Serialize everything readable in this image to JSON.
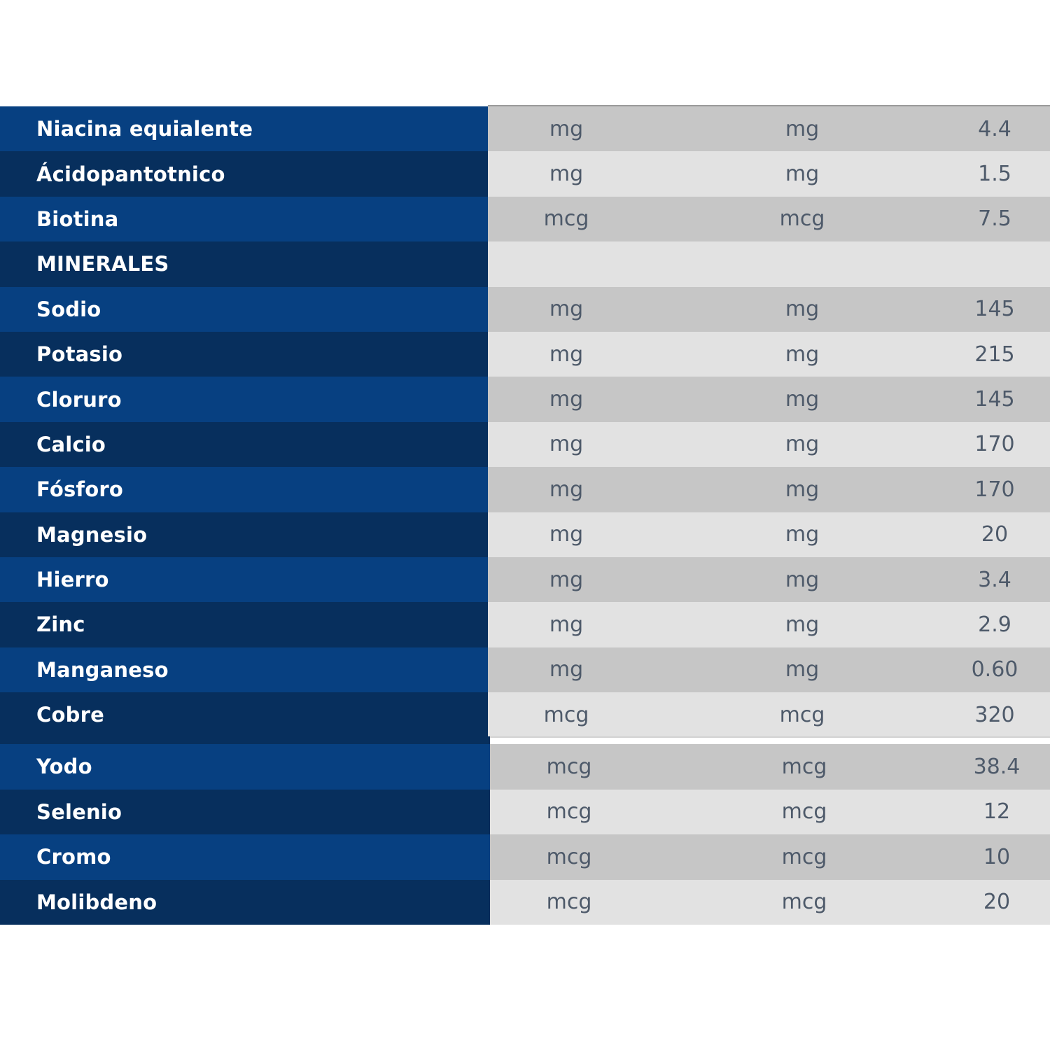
{
  "table_top": [
    {
      "name": "Niacina equialente",
      "unit1": "mg",
      "unit2": "mg",
      "value": "4.4"
    },
    {
      "name": "Ácidopantotnico",
      "unit1": "mg",
      "unit2": "mg",
      "value": "1.5"
    },
    {
      "name": "Biotina",
      "unit1": "mcg",
      "unit2": "mcg",
      "value": "7.5"
    },
    {
      "name": "MINERALES",
      "unit1": "",
      "unit2": "",
      "value": ""
    },
    {
      "name": "Sodio",
      "unit1": "mg",
      "unit2": "mg",
      "value": "145"
    },
    {
      "name": "Potasio",
      "unit1": "mg",
      "unit2": "mg",
      "value": "215"
    },
    {
      "name": "Cloruro",
      "unit1": "mg",
      "unit2": "mg",
      "value": "145"
    },
    {
      "name": "Calcio",
      "unit1": "mg",
      "unit2": "mg",
      "value": "170"
    },
    {
      "name": "Fósforo",
      "unit1": "mg",
      "unit2": "mg",
      "value": "170"
    },
    {
      "name": "Magnesio",
      "unit1": "mg",
      "unit2": "mg",
      "value": "20"
    },
    {
      "name": "Hierro",
      "unit1": "mg",
      "unit2": "mg",
      "value": "3.4"
    },
    {
      "name": "Zinc",
      "unit1": "mg",
      "unit2": "mg",
      "value": "2.9"
    },
    {
      "name": "Manganeso",
      "unit1": "mg",
      "unit2": "mg",
      "value": "0.60"
    },
    {
      "name": "Cobre",
      "unit1": "mcg",
      "unit2": "mcg",
      "value": "320"
    }
  ],
  "table_bottom": [
    {
      "name": "Yodo",
      "unit1": "mcg",
      "unit2": "mcg",
      "value": "38.4"
    },
    {
      "name": "Selenio",
      "unit1": "mcg",
      "unit2": "mcg",
      "value": "12"
    },
    {
      "name": "Cromo",
      "unit1": "mcg",
      "unit2": "mcg",
      "value": "10"
    },
    {
      "name": "Molibdeno",
      "unit1": "mcg",
      "unit2": "mcg",
      "value": "20"
    }
  ],
  "colors": {
    "name_col_light": "#074081",
    "name_col_dark": "#072f5d",
    "data_row_dark": "#c6c6c6",
    "data_row_light": "#e2e2e2",
    "data_text": "#4e5a6a"
  }
}
